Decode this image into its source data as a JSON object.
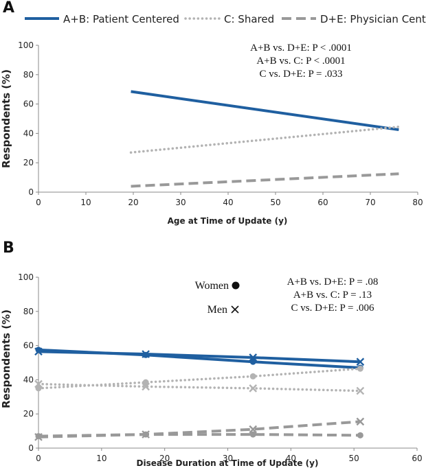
{
  "legend": {
    "items": [
      {
        "label": "A+B: Patient Centered",
        "color": "#1f5fa0",
        "style": "solid"
      },
      {
        "label": "C: Shared",
        "color": "#b3b3b3",
        "style": "dotted"
      },
      {
        "label": "D+E: Physician Centered",
        "color": "#999999",
        "style": "dashed"
      }
    ]
  },
  "chart_data": [
    {
      "panel_letter": "A",
      "type": "line",
      "xlabel": "Age at Time of Update (y)",
      "ylabel": "Respondents (%)",
      "xlim": [
        0,
        80
      ],
      "ylim": [
        0,
        100
      ],
      "xticks": [
        "0",
        "10",
        "20",
        "30",
        "40",
        "50",
        "60",
        "70",
        "80"
      ],
      "yticks": [
        "0",
        "20",
        "40",
        "60",
        "80",
        "100"
      ],
      "annotations": [
        "A+B vs. D+E: P < .0001",
        "A+B vs. C: P < .0001",
        "C vs. D+E: P = .033"
      ],
      "series": [
        {
          "name": "A+B: Patient Centered",
          "x": [
            19.5,
            76
          ],
          "y": [
            68.5,
            42.5
          ]
        },
        {
          "name": "C: Shared",
          "x": [
            19.5,
            76
          ],
          "y": [
            27,
            44.5
          ]
        },
        {
          "name": "D+E: Physician Centered",
          "x": [
            19.5,
            76
          ],
          "y": [
            4,
            12.5
          ]
        }
      ]
    },
    {
      "panel_letter": "B",
      "type": "line",
      "xlabel": "Disease Duration at Time of Update (y)",
      "ylabel": "Respondents (%)",
      "xlim": [
        0,
        60
      ],
      "ylim": [
        0,
        100
      ],
      "xticks": [
        "0",
        "10",
        "20",
        "30",
        "40",
        "50",
        "60"
      ],
      "yticks": [
        "0",
        "20",
        "40",
        "60",
        "80",
        "100"
      ],
      "marker_legend": [
        {
          "label": "Women",
          "marker": "circle"
        },
        {
          "label": "Men",
          "marker": "x"
        }
      ],
      "annotations": [
        "A+B vs. D+E: P = .08",
        "A+B vs. C: P = .13",
        "C vs. D+E: P = .006"
      ],
      "series": [
        {
          "name": "A+B: Patient Centered (Women)",
          "group": "A+B: Patient Centered",
          "sex": "Women",
          "x": [
            0,
            17,
            34,
            51
          ],
          "y": [
            57.5,
            54.5,
            50.5,
            47
          ]
        },
        {
          "name": "A+B: Patient Centered (Men)",
          "group": "A+B: Patient Centered",
          "sex": "Men",
          "x": [
            0,
            17,
            34,
            51
          ],
          "y": [
            56.5,
            55,
            53,
            50.5
          ]
        },
        {
          "name": "C: Shared (Women)",
          "group": "C: Shared",
          "sex": "Women",
          "x": [
            0,
            17,
            34,
            51
          ],
          "y": [
            35,
            38.5,
            42,
            46.5
          ]
        },
        {
          "name": "C: Shared (Men)",
          "group": "C: Shared",
          "sex": "Men",
          "x": [
            0,
            17,
            34,
            51
          ],
          "y": [
            37.5,
            36,
            35,
            33.5
          ]
        },
        {
          "name": "D+E: Physician Centered (Women)",
          "group": "D+E: Physician Centered",
          "sex": "Women",
          "x": [
            0,
            17,
            34,
            51
          ],
          "y": [
            7,
            8,
            8,
            7.5
          ]
        },
        {
          "name": "D+E: Physician Centered (Men)",
          "group": "D+E: Physician Centered",
          "sex": "Men",
          "x": [
            0,
            17,
            34,
            51
          ],
          "y": [
            6.5,
            8,
            11,
            15.5
          ]
        }
      ]
    }
  ]
}
